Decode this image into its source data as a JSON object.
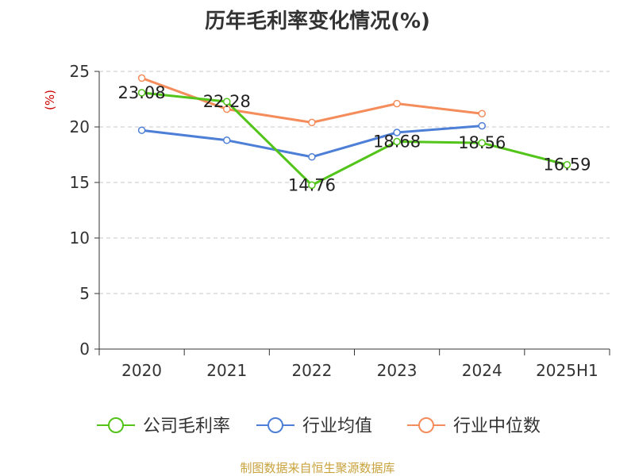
{
  "chart_data": {
    "type": "line",
    "title": "历年毛利率变化情况(%)",
    "ylabel": "(%)",
    "categories": [
      "2020",
      "2021",
      "2022",
      "2023",
      "2024",
      "2025H1"
    ],
    "ylim": [
      0,
      25
    ],
    "yticks": [
      0,
      5,
      10,
      15,
      20,
      25
    ],
    "grid": true,
    "legend_position": "bottom",
    "series": [
      {
        "name": "公司毛利率",
        "color": "#52c41a",
        "values": [
          23.08,
          22.28,
          14.76,
          18.68,
          18.56,
          16.59
        ],
        "labels": [
          "23.08",
          "22.28",
          "14.76",
          "18.68",
          "18.56",
          "16.59"
        ]
      },
      {
        "name": "行业均值",
        "color": "#4e7fd6",
        "values": [
          19.7,
          18.8,
          17.3,
          19.5,
          20.1,
          null
        ]
      },
      {
        "name": "行业中位数",
        "color": "#f48c5b",
        "values": [
          24.4,
          21.6,
          20.4,
          22.1,
          21.2,
          null
        ]
      }
    ]
  },
  "ylabel_color": "#cc0000",
  "source": {
    "text": "制图数据来自恒生聚源数据库",
    "color": "#c8a23c"
  }
}
